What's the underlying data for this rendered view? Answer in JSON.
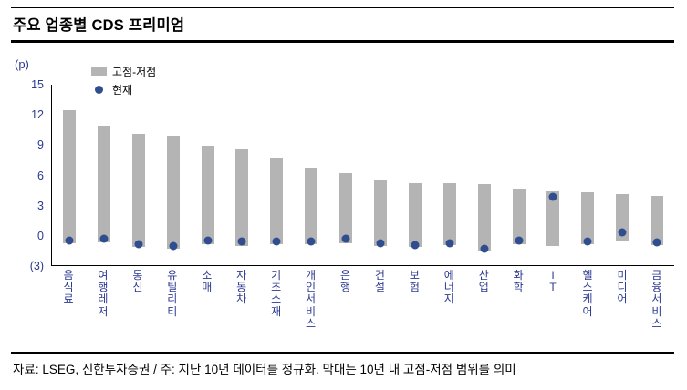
{
  "header": {
    "title": "주요 업종별 CDS 프리미엄"
  },
  "axis": {
    "unit_label": "(p)",
    "yticks": [
      {
        "label": "15",
        "value": 15
      },
      {
        "label": "12",
        "value": 12
      },
      {
        "label": "9",
        "value": 9
      },
      {
        "label": "6",
        "value": 6
      },
      {
        "label": "3",
        "value": 3
      },
      {
        "label": "0",
        "value": 0
      },
      {
        "label": "(3)",
        "value": -3
      }
    ]
  },
  "legend": {
    "range_label": "고점-저점",
    "current_label": "현재"
  },
  "footer": {
    "source_note": "자료: LSEG, 신한투자증권 / 주: 지난 10년 데이터를 정규화. 막대는 10년 내 고점-저점 범위를 의미"
  },
  "colors": {
    "bar": "#b4b4b4",
    "dot": "#2f4d8f",
    "axis_text": "#2b3990",
    "label_text": "#2b3990",
    "rule": "#000000"
  },
  "chart_data": {
    "type": "bar",
    "subtype": "floating-range-with-current-point",
    "title": "주요 업종별 CDS 프리미엄",
    "ylabel": "(p)",
    "ylim": [
      -3,
      15
    ],
    "grid": false,
    "legend_position": "top-left-inside",
    "categories": [
      "음식료",
      "여행레저",
      "통신",
      "유틸리티",
      "소매",
      "자동차",
      "기초소재",
      "개인서비스",
      "은행",
      "건설",
      "보험",
      "에너지",
      "산업",
      "화학",
      "IT",
      "헬스케어",
      "미디어",
      "금융서비스"
    ],
    "series": [
      {
        "name": "고점-저점",
        "type": "range",
        "low": [
          -0.8,
          -0.7,
          -1.2,
          -1.4,
          -0.9,
          -1.1,
          -0.9,
          -0.9,
          -0.8,
          -1.1,
          -1.2,
          -1.0,
          -1.6,
          -0.9,
          -1.1,
          -0.9,
          -0.6,
          -1.0
        ],
        "high": [
          12.5,
          10.9,
          10.1,
          9.9,
          8.9,
          8.6,
          7.7,
          6.7,
          6.2,
          5.5,
          5.2,
          5.2,
          5.1,
          4.6,
          4.4,
          4.3,
          4.1,
          3.9
        ]
      },
      {
        "name": "현재",
        "type": "point",
        "values": [
          -0.5,
          -0.4,
          -0.9,
          -1.1,
          -0.5,
          -0.6,
          -0.6,
          -0.6,
          -0.4,
          -0.8,
          -1.0,
          -0.8,
          -1.4,
          -0.5,
          3.8,
          -0.6,
          0.3,
          -0.7
        ]
      }
    ]
  }
}
